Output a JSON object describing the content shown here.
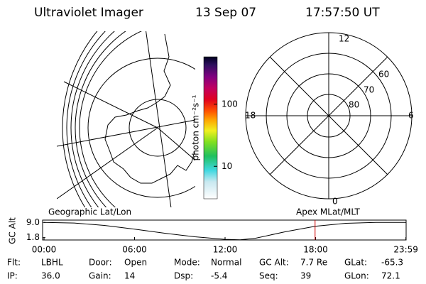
{
  "header": {
    "instrument": "Ultraviolet Imager",
    "date": "13 Sep 07",
    "time": "17:57:50 UT"
  },
  "colorbar": {
    "label": "photon cm⁻²s⁻¹",
    "scale": "log",
    "range": [
      3,
      580
    ],
    "ticks": [
      10,
      100
    ]
  },
  "polar": {
    "mlt_labels": [
      "12",
      "6",
      "18",
      "0"
    ],
    "mlat_labels": [
      "60",
      "70",
      "80"
    ]
  },
  "orbit": {
    "left_label": "Geographic Lat/Lon",
    "right_label": "Apex MLat/MLT",
    "y_label": "GC Alt",
    "ylim": [
      0.7,
      10.1
    ],
    "yticks": [
      {
        "value": 9,
        "label": "9.0"
      },
      1.8
    ],
    "xlim": [
      0,
      24
    ],
    "xticks": [
      {
        "value": 0,
        "label": "00:00"
      },
      {
        "value": 6,
        "label": "06:00"
      },
      {
        "value": 12,
        "label": "12:00"
      },
      {
        "value": 18,
        "label": "18:00"
      },
      {
        "value": 23.983,
        "label": "23:59"
      }
    ],
    "hours": [
      0,
      2,
      4,
      6,
      8,
      10,
      12,
      13,
      14,
      16,
      18,
      20,
      22,
      23.983
    ],
    "alt": [
      9.0,
      8.7,
      7.6,
      5.8,
      3.9,
      2.2,
      1.0,
      0.8,
      1.5,
      4.6,
      7.2,
      8.6,
      9.0,
      9.0
    ],
    "current_hour": 17.966
  },
  "footer": [
    {
      "label": "Flt:",
      "value": "LBHL"
    },
    {
      "label": "IP:",
      "value": "36.0"
    },
    {
      "label": "Door:",
      "value": "Open"
    },
    {
      "label": "Gain:",
      "value": "14"
    },
    {
      "label": "Mode:",
      "value": "Normal"
    },
    {
      "label": "Dsp:",
      "value": "-5.4"
    },
    {
      "label": "GC Alt:",
      "value": "7.7 Re"
    },
    {
      "label": "Seq:",
      "value": "39"
    },
    {
      "label": "GLat:",
      "value": "-65.3"
    },
    {
      "label": "GLon:",
      "value": "72.1"
    }
  ]
}
